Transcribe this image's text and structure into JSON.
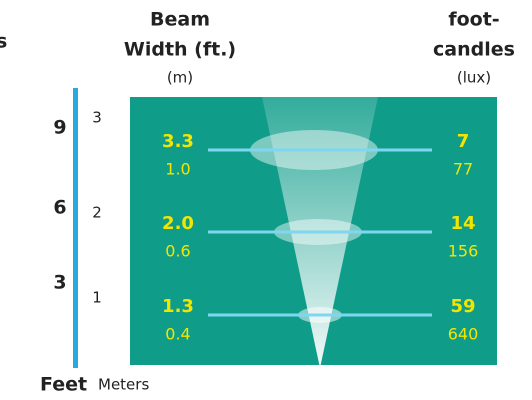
{
  "side_label": "s",
  "header": {
    "beam": [
      "Beam",
      "Width (ft.)"
    ],
    "beam_unit": "(m)",
    "fc": [
      "foot-",
      "candles"
    ],
    "fc_unit": "(lux)"
  },
  "rows": [
    {
      "feet": "9",
      "meters": "3",
      "beam_ft": "3.3",
      "beam_m": "1.0",
      "fc": "7",
      "lux": "77"
    },
    {
      "feet": "6",
      "meters": "2",
      "beam_ft": "2.0",
      "beam_m": "0.6",
      "fc": "14",
      "lux": "156"
    },
    {
      "feet": "3",
      "meters": "1",
      "beam_ft": "1.3",
      "beam_m": "0.4",
      "fc": "59",
      "lux": "640"
    }
  ],
  "footer": {
    "feet": "Feet",
    "meters": "Meters"
  }
}
